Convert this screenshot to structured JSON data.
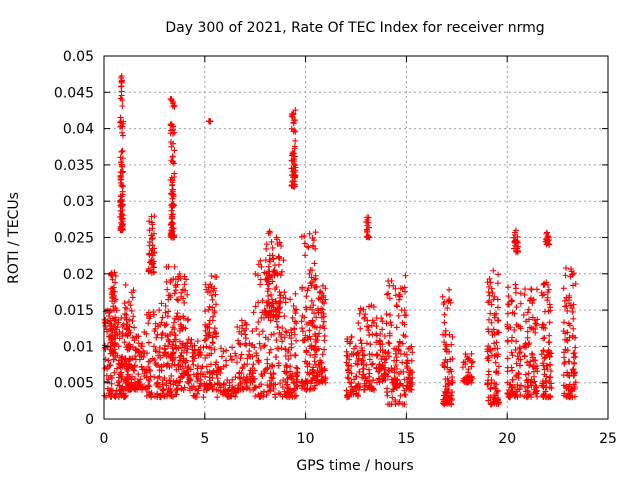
{
  "chart_data": {
    "type": "scatter",
    "title": "Day 300 of 2021, Rate Of TEC Index for receiver nrmg",
    "xlabel": "GPS time / hours",
    "ylabel": "ROTI / TECUs",
    "xlim": [
      0,
      25
    ],
    "ylim": [
      0,
      0.05
    ],
    "xticks": [
      "0",
      "5",
      "10",
      "15",
      "20",
      "25"
    ],
    "yticks": [
      "0",
      "0.005",
      "0.01",
      "0.015",
      "0.02",
      "0.025",
      "0.03",
      "0.035",
      "0.04",
      "0.045",
      "0.05"
    ],
    "grid": true,
    "marker": "plus",
    "color": "#ff0000",
    "series": [
      {
        "name": "ROTI",
        "clusters": [
          {
            "x": [
              0.0,
              0.7
            ],
            "y": [
              0.003,
              0.015
            ]
          },
          {
            "x": [
              0.3,
              0.6
            ],
            "y": [
              0.009,
              0.021
            ]
          },
          {
            "x": [
              0.7,
              1.2
            ],
            "y": [
              0.003,
              0.014
            ]
          },
          {
            "x": [
              0.8,
              0.95
            ],
            "y": [
              0.026,
              0.048
            ]
          },
          {
            "x": [
              1.0,
              1.5
            ],
            "y": [
              0.004,
              0.019
            ]
          },
          {
            "x": [
              1.5,
              2.0
            ],
            "y": [
              0.004,
              0.012
            ]
          },
          {
            "x": [
              2.0,
              3.0
            ],
            "y": [
              0.003,
              0.016
            ]
          },
          {
            "x": [
              2.2,
              2.5
            ],
            "y": [
              0.02,
              0.028
            ]
          },
          {
            "x": [
              3.0,
              3.6
            ],
            "y": [
              0.003,
              0.021
            ]
          },
          {
            "x": [
              3.3,
              3.5
            ],
            "y": [
              0.025,
              0.045
            ]
          },
          {
            "x": [
              3.6,
              4.2
            ],
            "y": [
              0.004,
              0.02
            ]
          },
          {
            "x": [
              4.2,
              5.0
            ],
            "y": [
              0.003,
              0.011
            ]
          },
          {
            "x": [
              5.0,
              5.6
            ],
            "y": [
              0.004,
              0.02
            ]
          },
          {
            "x": [
              5.2,
              5.3
            ],
            "y": [
              0.041,
              0.041
            ]
          },
          {
            "x": [
              5.6,
              6.6
            ],
            "y": [
              0.003,
              0.01
            ]
          },
          {
            "x": [
              6.6,
              7.5
            ],
            "y": [
              0.004,
              0.015
            ]
          },
          {
            "x": [
              7.5,
              9.0
            ],
            "y": [
              0.003,
              0.022
            ]
          },
          {
            "x": [
              8.0,
              8.8
            ],
            "y": [
              0.014,
              0.026
            ]
          },
          {
            "x": [
              9.0,
              9.6
            ],
            "y": [
              0.003,
              0.018
            ]
          },
          {
            "x": [
              9.3,
              9.5
            ],
            "y": [
              0.032,
              0.044
            ]
          },
          {
            "x": [
              9.8,
              10.5
            ],
            "y": [
              0.004,
              0.026
            ]
          },
          {
            "x": [
              10.5,
              11.0
            ],
            "y": [
              0.005,
              0.019
            ]
          },
          {
            "x": [
              12.0,
              12.6
            ],
            "y": [
              0.003,
              0.012
            ]
          },
          {
            "x": [
              12.6,
              13.4
            ],
            "y": [
              0.004,
              0.016
            ]
          },
          {
            "x": [
              13.0,
              13.2
            ],
            "y": [
              0.025,
              0.028
            ]
          },
          {
            "x": [
              13.5,
              14.0
            ],
            "y": [
              0.005,
              0.014
            ]
          },
          {
            "x": [
              14.0,
              15.0
            ],
            "y": [
              0.002,
              0.02
            ]
          },
          {
            "x": [
              15.0,
              15.3
            ],
            "y": [
              0.004,
              0.01
            ]
          },
          {
            "x": [
              16.8,
              17.3
            ],
            "y": [
              0.002,
              0.018
            ]
          },
          {
            "x": [
              17.8,
              18.3
            ],
            "y": [
              0.005,
              0.009
            ]
          },
          {
            "x": [
              19.0,
              19.6
            ],
            "y": [
              0.002,
              0.021
            ]
          },
          {
            "x": [
              20.0,
              20.7
            ],
            "y": [
              0.003,
              0.019
            ]
          },
          {
            "x": [
              20.3,
              20.6
            ],
            "y": [
              0.023,
              0.026
            ]
          },
          {
            "x": [
              20.8,
              21.5
            ],
            "y": [
              0.003,
              0.018
            ]
          },
          {
            "x": [
              21.7,
              22.2
            ],
            "y": [
              0.003,
              0.019
            ]
          },
          {
            "x": [
              21.9,
              22.1
            ],
            "y": [
              0.024,
              0.026
            ]
          },
          {
            "x": [
              22.8,
              23.4
            ],
            "y": [
              0.003,
              0.021
            ]
          }
        ]
      }
    ]
  }
}
